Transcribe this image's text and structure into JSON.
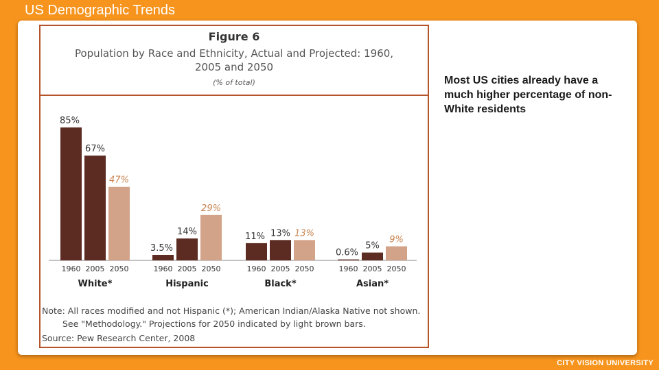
{
  "slide": {
    "title": "US Demographic Trends",
    "side_text": "Most US cities already have a much higher percentage of non-White residents",
    "brand": "CITY VISION UNIVERSITY"
  },
  "figure": {
    "number": "Figure 6",
    "title": "Population by Race and Ethnicity, Actual and Projected: 1960, 2005 and 2050",
    "subtitle": "(% of total)",
    "note_line1": "Note: All races modified and not Hispanic (*); American Indian/Alaska Native not shown.",
    "note_line2": "See \"Methodology.\"  Projections for 2050 indicated by light brown bars.",
    "source": "Source: Pew Research Center, 2008"
  },
  "chart_data": {
    "type": "bar",
    "title": "Population by Race and Ethnicity, Actual and Projected: 1960, 2005 and 2050",
    "ylabel": "% of total",
    "ylim": [
      0,
      85
    ],
    "years": [
      "1960",
      "2005",
      "2050"
    ],
    "groups": [
      {
        "name": "White*",
        "values": [
          85,
          67,
          47
        ],
        "labels": [
          "85%",
          "67%",
          "47%"
        ]
      },
      {
        "name": "Hispanic",
        "values": [
          3.5,
          14,
          29
        ],
        "labels": [
          "3.5%",
          "14%",
          "29%"
        ]
      },
      {
        "name": "Black*",
        "values": [
          11,
          13,
          13
        ],
        "labels": [
          "11%",
          "13%",
          "13%"
        ]
      },
      {
        "name": "Asian*",
        "values": [
          0.6,
          5,
          9
        ],
        "labels": [
          "0.6%",
          "5%",
          "9%"
        ]
      }
    ],
    "colors": {
      "actual": "#5c2b22",
      "projected": "#d3a389",
      "projected_label": "#c8834f",
      "label": "#333333",
      "axis": "#888888"
    }
  }
}
